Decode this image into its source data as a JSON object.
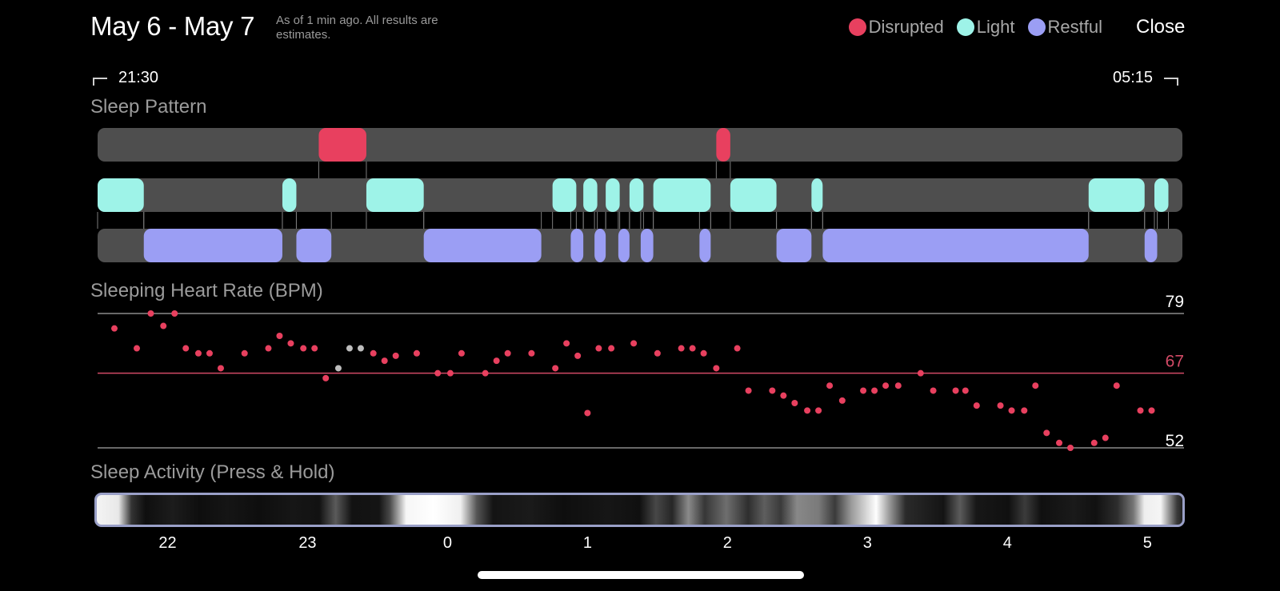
{
  "header": {
    "title": "May 6 - May 7",
    "subtitle": "As of 1 min ago. All results are estimates.",
    "close_label": "Close"
  },
  "legend": [
    {
      "label": "Disrupted",
      "color": "#e8405f"
    },
    {
      "label": "Light",
      "color": "#9ef3e8"
    },
    {
      "label": "Restful",
      "color": "#9b9ef4"
    }
  ],
  "time_range": {
    "start": "21:30",
    "end": "05:15"
  },
  "sections": {
    "pattern": "Sleep Pattern",
    "heart_rate": "Sleeping Heart Rate (BPM)",
    "activity": "Sleep Activity (Press & Hold)"
  },
  "colors": {
    "disrupted": "#e8405f",
    "light": "#9ef3e8",
    "restful": "#9b9ef4",
    "track": "#4e4e4e",
    "hr_point": "#e8405f",
    "hr_point_missing": "#bdbdbd",
    "activity_border": "#9aa0c8"
  },
  "sleep_pattern": {
    "disrupted": [
      [
        23.08,
        23.42
      ],
      [
        1.92,
        2.02
      ]
    ],
    "light": [
      [
        21.5,
        21.83
      ],
      [
        22.82,
        22.92
      ],
      [
        23.42,
        23.83
      ],
      [
        0.75,
        0.92
      ],
      [
        0.97,
        1.07
      ],
      [
        1.13,
        1.23
      ],
      [
        1.3,
        1.4
      ],
      [
        1.47,
        1.88
      ],
      [
        2.02,
        2.35
      ],
      [
        2.6,
        2.68
      ],
      [
        4.58,
        4.98
      ],
      [
        5.05,
        5.15
      ]
    ],
    "restful": [
      [
        21.83,
        22.82
      ],
      [
        22.92,
        23.17
      ],
      [
        23.83,
        0.67
      ],
      [
        0.88,
        0.97
      ],
      [
        1.05,
        1.13
      ],
      [
        1.22,
        1.3
      ],
      [
        1.38,
        1.47
      ],
      [
        1.8,
        1.88
      ],
      [
        2.35,
        2.6
      ],
      [
        2.68,
        4.58
      ],
      [
        4.98,
        5.07
      ]
    ]
  },
  "heart_rate": {
    "max_label": "79",
    "avg_label": "67",
    "min_label": "52",
    "max": 79,
    "avg": 67,
    "min": 52,
    "points": [
      [
        21.62,
        76
      ],
      [
        21.78,
        72
      ],
      [
        21.88,
        79
      ],
      [
        21.97,
        76.5
      ],
      [
        22.05,
        79
      ],
      [
        22.13,
        72
      ],
      [
        22.22,
        71
      ],
      [
        22.3,
        71
      ],
      [
        22.38,
        68
      ],
      [
        22.55,
        71
      ],
      [
        22.72,
        72
      ],
      [
        22.8,
        74.5
      ],
      [
        22.88,
        73
      ],
      [
        22.97,
        72
      ],
      [
        23.05,
        72
      ],
      [
        23.13,
        66
      ],
      [
        23.22,
        68,
        "missing"
      ],
      [
        23.3,
        72,
        "missing"
      ],
      [
        23.38,
        72,
        "missing"
      ],
      [
        23.47,
        71
      ],
      [
        23.55,
        69.5
      ],
      [
        23.63,
        70.5
      ],
      [
        23.78,
        71
      ],
      [
        23.93,
        67
      ],
      [
        24.02,
        67
      ],
      [
        24.1,
        71
      ],
      [
        24.27,
        67
      ],
      [
        24.35,
        69.5
      ],
      [
        24.43,
        71
      ],
      [
        24.6,
        71
      ],
      [
        24.77,
        68
      ],
      [
        24.85,
        73
      ],
      [
        24.93,
        70.5
      ],
      [
        25.0,
        59
      ],
      [
        25.08,
        72
      ],
      [
        25.17,
        72
      ],
      [
        25.33,
        73
      ],
      [
        25.5,
        71
      ],
      [
        25.67,
        72
      ],
      [
        25.75,
        72
      ],
      [
        25.83,
        71
      ],
      [
        25.92,
        68
      ],
      [
        26.07,
        72
      ],
      [
        26.15,
        63.5
      ],
      [
        26.32,
        63.5
      ],
      [
        26.4,
        62.5
      ],
      [
        26.48,
        61
      ],
      [
        26.57,
        59.5
      ],
      [
        26.65,
        59.5
      ],
      [
        26.73,
        64.5
      ],
      [
        26.82,
        61.5
      ],
      [
        26.97,
        63.5
      ],
      [
        27.05,
        63.5
      ],
      [
        27.13,
        64.5
      ],
      [
        27.22,
        64.5
      ],
      [
        27.38,
        67
      ],
      [
        27.47,
        63.5
      ],
      [
        27.63,
        63.5
      ],
      [
        27.7,
        63.5
      ],
      [
        27.78,
        60.5
      ],
      [
        27.95,
        60.5
      ],
      [
        28.03,
        59.5
      ],
      [
        28.12,
        59.5
      ],
      [
        28.2,
        64.5
      ],
      [
        28.28,
        55
      ],
      [
        28.37,
        53
      ],
      [
        28.45,
        52
      ],
      [
        28.62,
        53
      ],
      [
        28.7,
        54
      ],
      [
        28.78,
        64.5
      ],
      [
        28.95,
        59.5
      ],
      [
        29.03,
        59.5
      ]
    ]
  },
  "activity_axis": {
    "ticks": [
      {
        "label": "22",
        "hour": 22
      },
      {
        "label": "23",
        "hour": 23
      },
      {
        "label": "0",
        "hour": 24
      },
      {
        "label": "1",
        "hour": 25
      },
      {
        "label": "2",
        "hour": 26
      },
      {
        "label": "3",
        "hour": 27
      },
      {
        "label": "4",
        "hour": 28
      },
      {
        "label": "5",
        "hour": 29
      }
    ]
  }
}
